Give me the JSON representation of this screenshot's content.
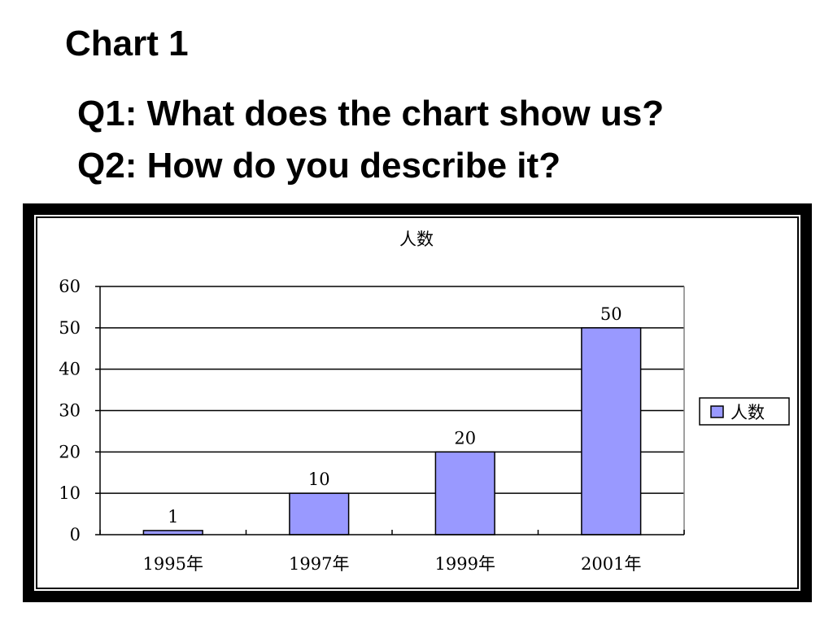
{
  "slide": {
    "title": "Chart 1",
    "questions": [
      "Q1: What does the chart show us?",
      "Q2: How do you describe it?"
    ]
  },
  "chart_data": {
    "type": "bar",
    "title": "人数",
    "categories": [
      "1995年",
      "1997年",
      "1999年",
      "2001年"
    ],
    "series": [
      {
        "name": "人数",
        "values": [
          1,
          10,
          20,
          50
        ],
        "color": "#9999ff"
      }
    ],
    "data_labels": [
      "1",
      "10",
      "20",
      "50"
    ],
    "yticks": [
      "0",
      "10",
      "20",
      "30",
      "40",
      "50",
      "60"
    ],
    "ylim": [
      0,
      60
    ],
    "xlabel": "",
    "ylabel": "",
    "grid": true,
    "legend": "right"
  }
}
